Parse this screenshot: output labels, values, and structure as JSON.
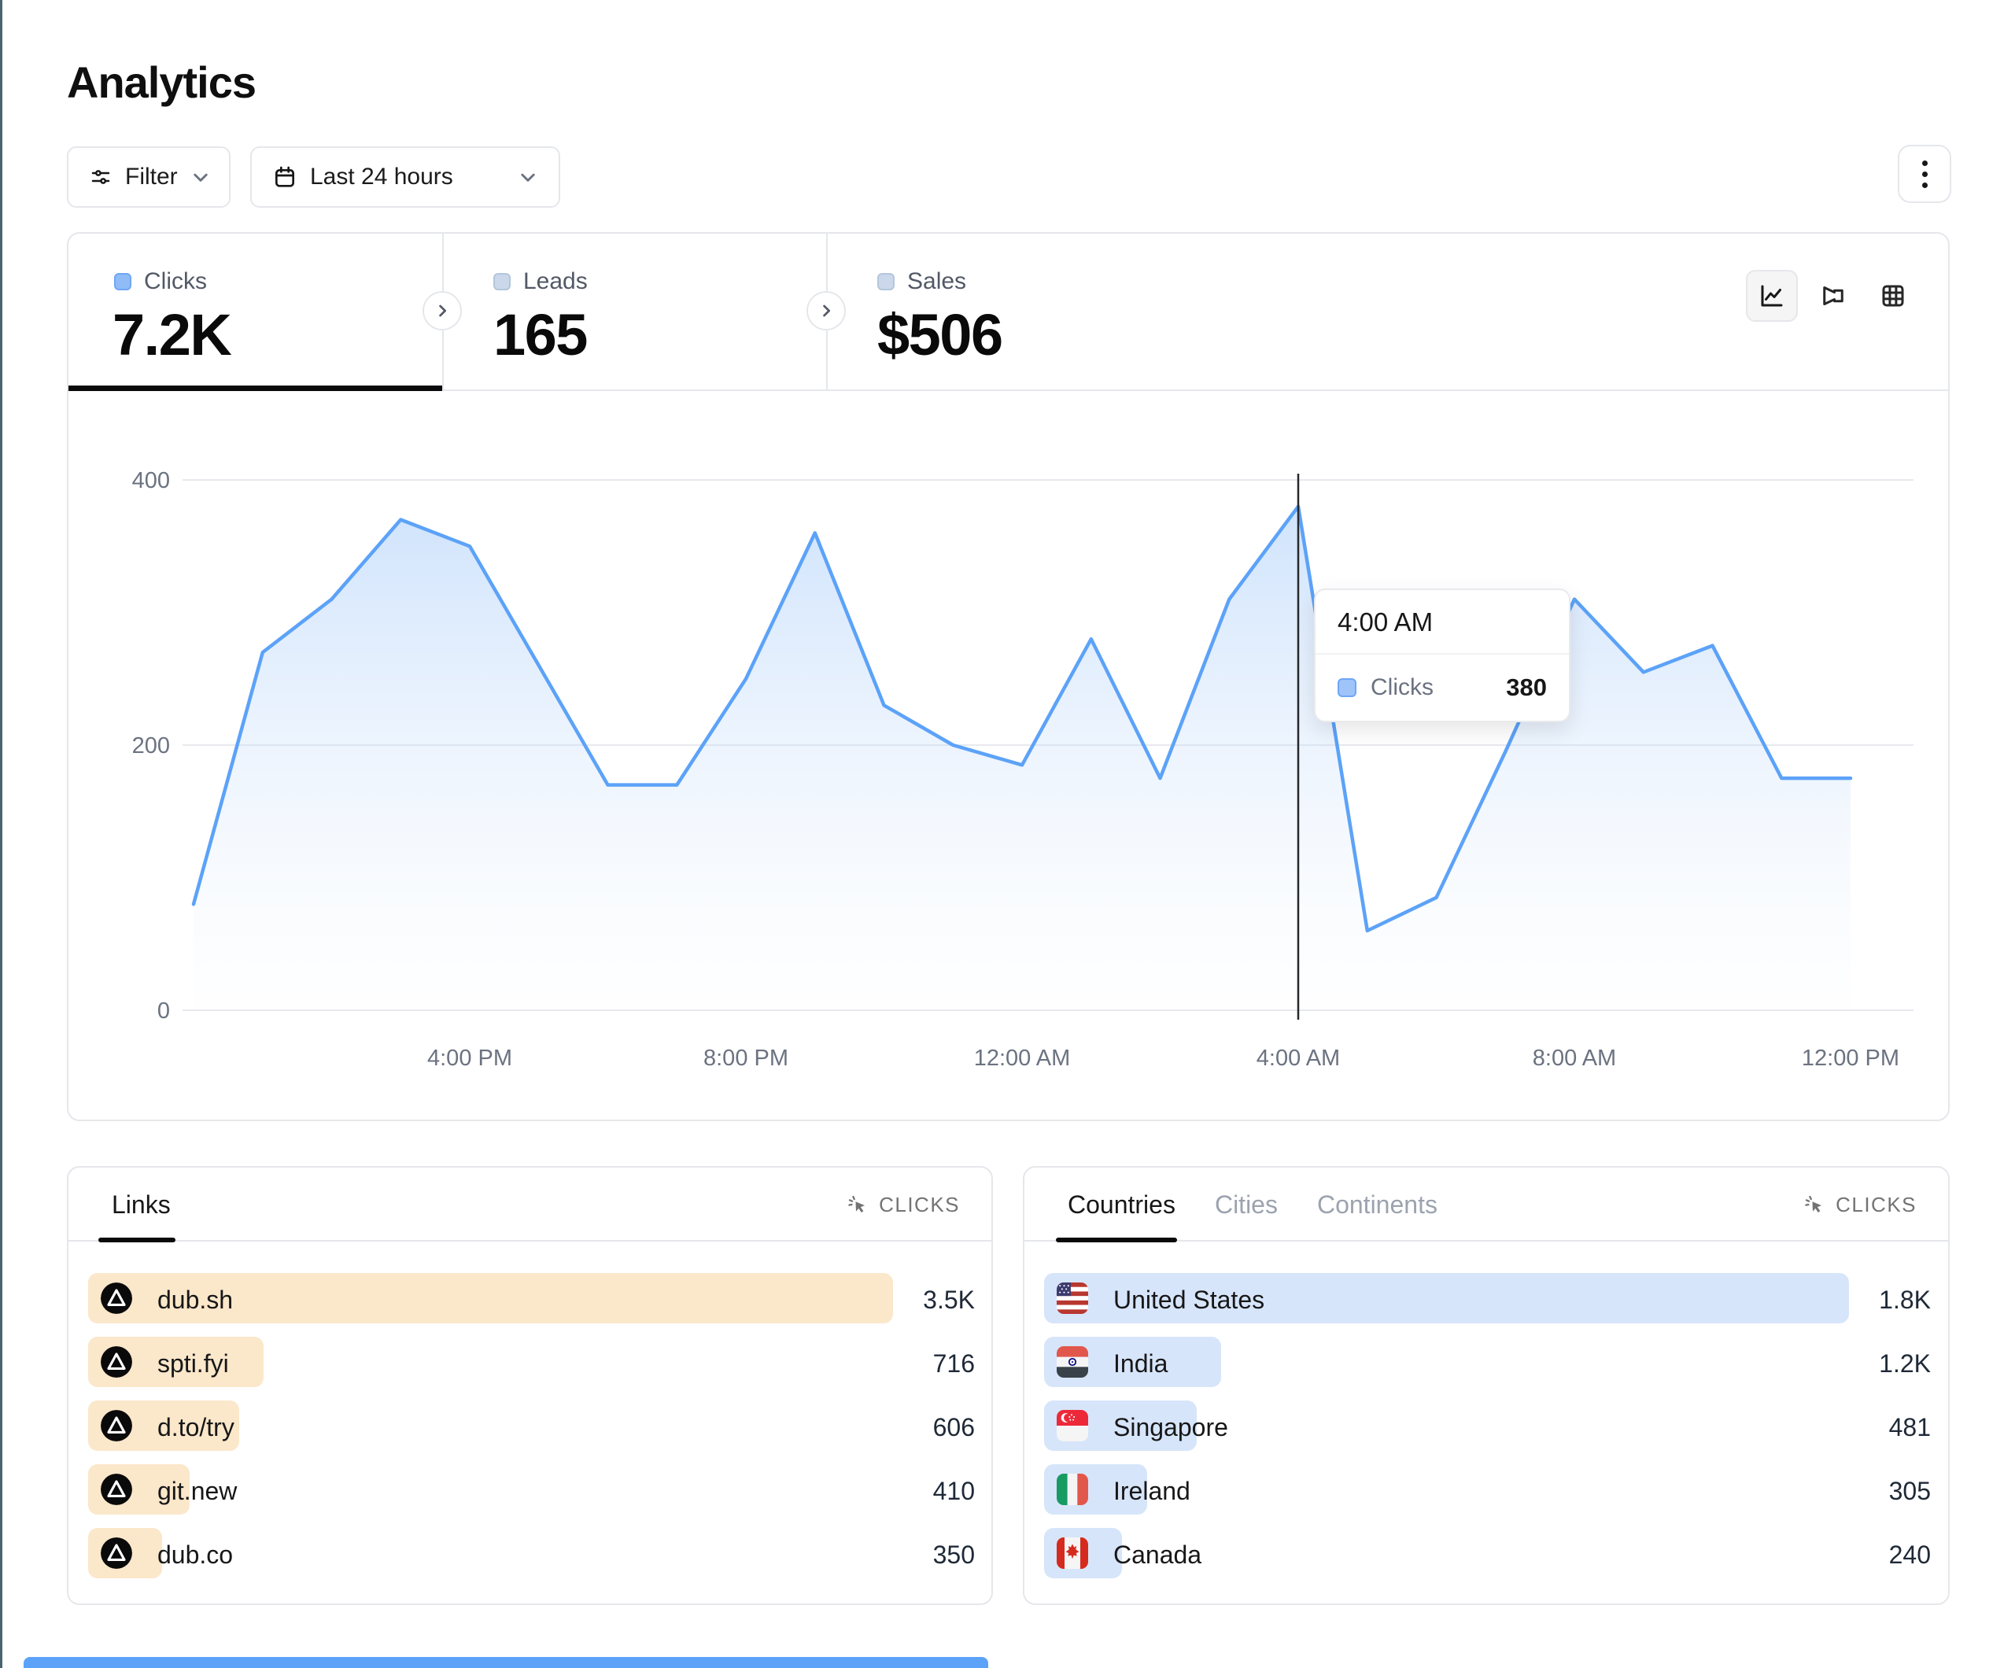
{
  "page": {
    "title": "Analytics"
  },
  "toolbar": {
    "filter_label": "Filter",
    "date_range_label": "Last 24 hours"
  },
  "stats": {
    "tabs": [
      {
        "label": "Clicks",
        "value": "7.2K",
        "active": true
      },
      {
        "label": "Leads",
        "value": "165",
        "active": false
      },
      {
        "label": "Sales",
        "value": "$506",
        "active": false
      }
    ]
  },
  "chart_data": {
    "type": "area",
    "series": [
      {
        "name": "Clicks",
        "values": [
          80,
          270,
          310,
          370,
          350,
          260,
          170,
          170,
          250,
          360,
          230,
          200,
          185,
          280,
          175,
          310,
          380,
          60,
          85,
          195,
          310,
          255,
          275,
          175,
          175
        ]
      }
    ],
    "x": [
      "12:00 PM",
      "1:00 PM",
      "2:00 PM",
      "3:00 PM",
      "4:00 PM",
      "5:00 PM",
      "6:00 PM",
      "7:00 PM",
      "8:00 PM",
      "9:00 PM",
      "10:00 PM",
      "11:00 PM",
      "12:00 AM",
      "1:00 AM",
      "2:00 AM",
      "3:00 AM",
      "4:00 AM",
      "5:00 AM",
      "6:00 AM",
      "7:00 AM",
      "8:00 AM",
      "9:00 AM",
      "10:00 AM",
      "11:00 AM",
      "12:00 PM"
    ],
    "ylim": [
      0,
      400
    ],
    "yticks": [
      0,
      200,
      400
    ],
    "xtick_labels": [
      "4:00 PM",
      "8:00 PM",
      "12:00 AM",
      "4:00 AM",
      "8:00 AM",
      "12:00 PM"
    ],
    "xtick_indices": [
      4,
      8,
      12,
      16,
      20,
      24
    ],
    "grid": "horizontal",
    "legend_position": "none",
    "line_color": "#5CA2F8",
    "crosshair_index": 16,
    "tooltip": {
      "title": "4:00 AM",
      "series_label": "Clicks",
      "value": "380"
    }
  },
  "links_panel": {
    "tabs": [
      {
        "label": "Links",
        "active": true
      }
    ],
    "metric_label": "CLICKS",
    "rows": [
      {
        "label": "dub.sh",
        "value": "3.5K",
        "bar_pct": 100
      },
      {
        "label": "spti.fyi",
        "value": "716",
        "bar_pct": 21.8
      },
      {
        "label": "d.to/try",
        "value": "606",
        "bar_pct": 18.8
      },
      {
        "label": "git.new",
        "value": "410",
        "bar_pct": 12.6
      },
      {
        "label": "dub.co",
        "value": "350",
        "bar_pct": 9.2
      }
    ]
  },
  "countries_panel": {
    "tabs": [
      {
        "label": "Countries",
        "active": true
      },
      {
        "label": "Cities",
        "active": false
      },
      {
        "label": "Continents",
        "active": false
      }
    ],
    "metric_label": "CLICKS",
    "rows": [
      {
        "label": "United States",
        "flag": "us",
        "value": "1.8K",
        "bar_pct": 100
      },
      {
        "label": "India",
        "flag": "in",
        "value": "1.2K",
        "bar_pct": 22
      },
      {
        "label": "Singapore",
        "flag": "sg",
        "value": "481",
        "bar_pct": 19
      },
      {
        "label": "Ireland",
        "flag": "ie",
        "value": "305",
        "bar_pct": 12.8
      },
      {
        "label": "Canada",
        "flag": "ca",
        "value": "240",
        "bar_pct": 9.7
      }
    ]
  },
  "colors": {
    "accent_blue": "#5CA2F8",
    "link_bar": "#FBE7CA",
    "country_bar": "#D7E5FA",
    "border": "#e5e7eb"
  }
}
